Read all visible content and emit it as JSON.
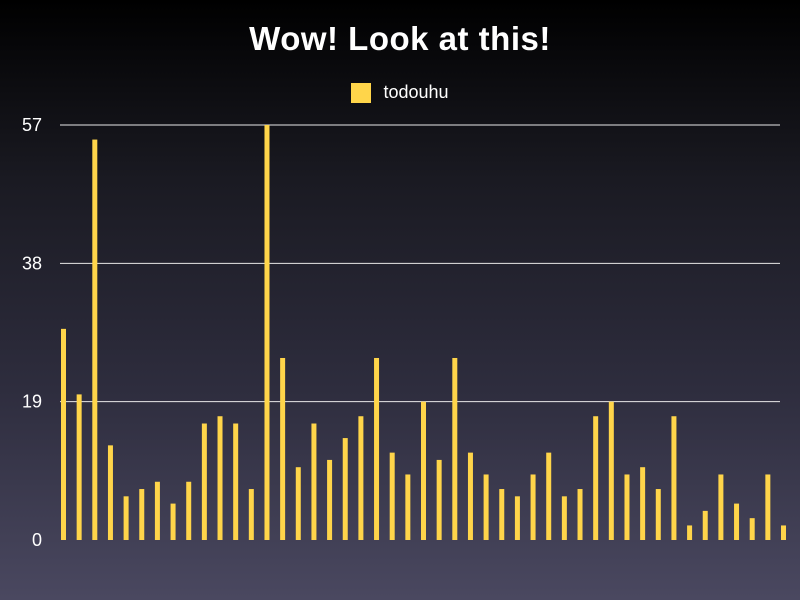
{
  "chart_data": {
    "type": "bar",
    "title": "Wow!  Look at this!",
    "legend_position": "top-center",
    "grid": true,
    "ylim": [
      0,
      57
    ],
    "yticks": [
      "0",
      "19",
      "38",
      "57"
    ],
    "series": [
      {
        "name": "todouhu",
        "color": "#ffd54a",
        "values": [
          29,
          20,
          55,
          13,
          6,
          7,
          8,
          5,
          8,
          16,
          17,
          16,
          7,
          57,
          25,
          10,
          16,
          11,
          14,
          17,
          25,
          12,
          9,
          19,
          11,
          25,
          12,
          9,
          7,
          6,
          9,
          12,
          6,
          7,
          17,
          19,
          9,
          10,
          7,
          17,
          2,
          4,
          9,
          5,
          3,
          9,
          2
        ]
      }
    ]
  }
}
